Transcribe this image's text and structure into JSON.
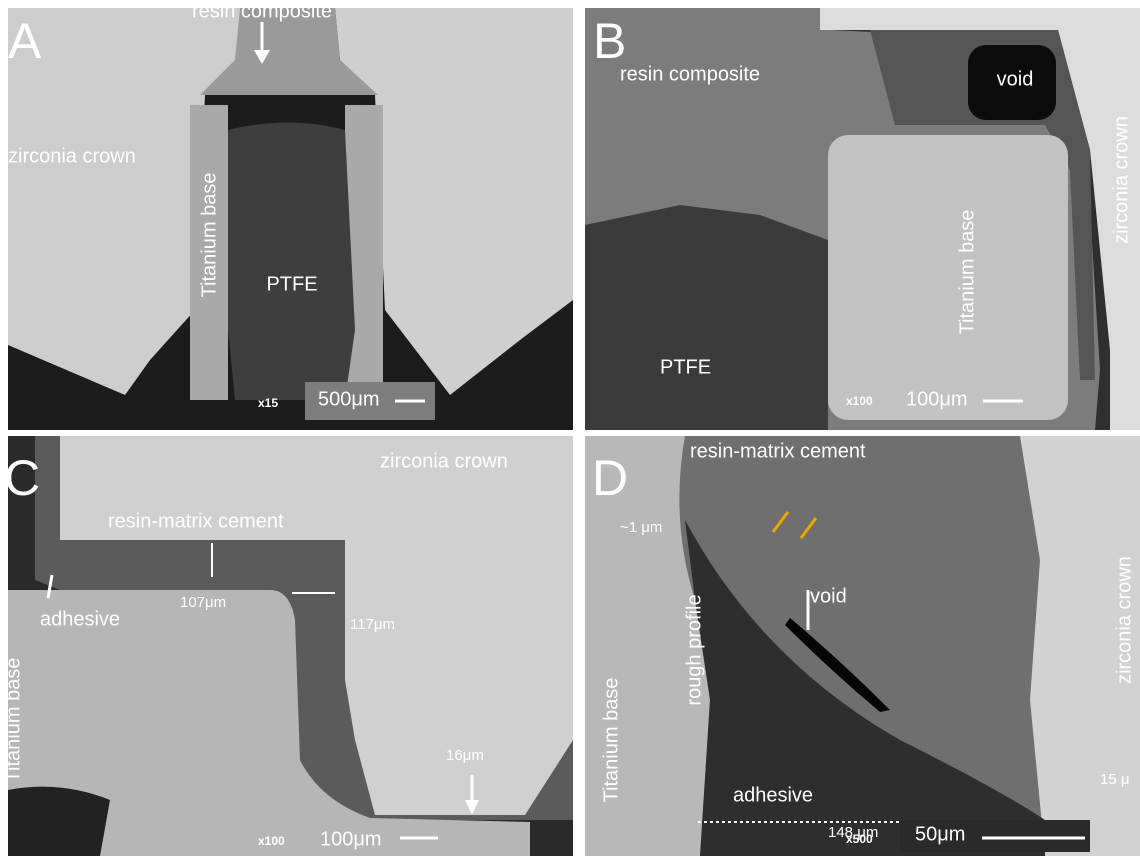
{
  "panels": [
    {
      "letter": "A",
      "labels": [
        "resin composite",
        "zirconia crown",
        "Titanium base",
        "PTFE"
      ],
      "magnification": "x15",
      "scale_bar": "500μm"
    },
    {
      "letter": "B",
      "labels": [
        "resin composite",
        "void",
        "zirconia crown",
        "Titanium base",
        "PTFE"
      ],
      "magnification": "x100",
      "scale_bar": "100μm"
    },
    {
      "letter": "C",
      "labels": [
        "zirconia crown",
        "resin-matrix cement",
        "adhesive",
        "107μm",
        "117μm",
        "16μm",
        "Titanium base"
      ],
      "magnification": "x100",
      "scale_bar": "100μm"
    },
    {
      "letter": "D",
      "labels": [
        "resin-matrix cement",
        "~1 μm",
        "rough profile",
        "void",
        "148 μm",
        "Titanium base",
        "zirconia crown",
        "adhesive",
        "15 μ"
      ],
      "magnification": "x500",
      "scale_bar": "50μm"
    }
  ]
}
